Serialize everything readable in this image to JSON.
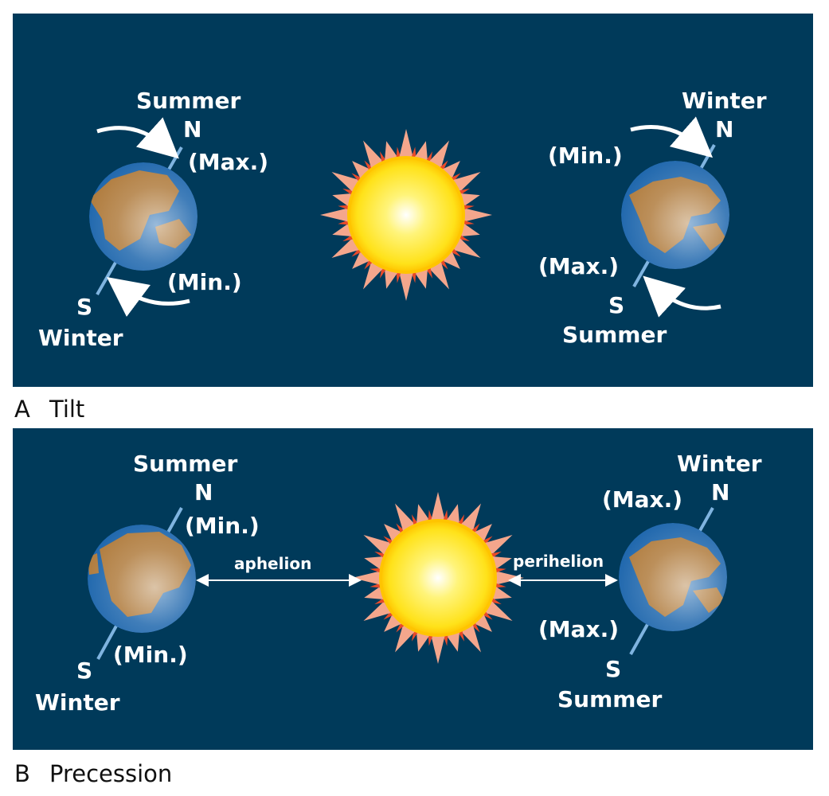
{
  "panel_a": {
    "letter": "A",
    "caption": "Tilt",
    "left_earth": {
      "top_season": "Summer",
      "north": "N",
      "north_angle": "(Max.)",
      "south_angle": "(Min.)",
      "south": "S",
      "bottom_season": "Winter"
    },
    "right_earth": {
      "top_season": "Winter",
      "north": "N",
      "north_angle": "(Min.)",
      "south_angle": "(Max.)",
      "south": "S",
      "bottom_season": "Summer"
    }
  },
  "panel_b": {
    "letter": "B",
    "caption": "Precession",
    "left_earth": {
      "top_season": "Summer",
      "north": "N",
      "north_angle": "(Min.)",
      "south_angle": "(Min.)",
      "south": "S",
      "bottom_season": "Winter"
    },
    "right_earth": {
      "top_season": "Winter",
      "north": "N",
      "north_angle": "(Max.)",
      "south_angle": "(Max.)",
      "south": "S",
      "bottom_season": "Summer"
    },
    "aphelion_label": "aphelion",
    "perihelion_label": "perihelion"
  },
  "colors": {
    "panel_bg": "#003a5a",
    "axis": "#7fb4e0",
    "ocean": "#1f67ad",
    "land": "#b07c3e",
    "sun_core": "#fff47a",
    "sun_rim": "#ffd200",
    "sun_rays": "#f4a68c",
    "sun_ray_tips": "#e84a2a"
  }
}
